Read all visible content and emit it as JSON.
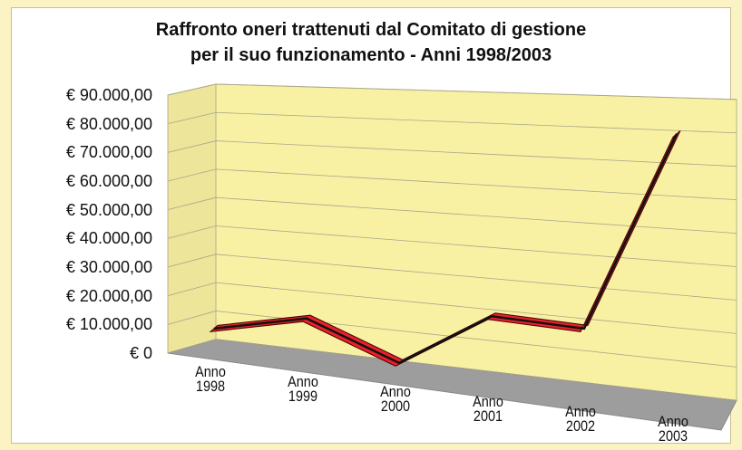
{
  "chart_data": {
    "type": "line",
    "title": [
      "Raffronto oneri trattenuti dal Comitato di gestione",
      "per il suo funzionamento - Anni 1998/2003"
    ],
    "categories": [
      "Anno 1998",
      "Anno 1999",
      "Anno 2000",
      "Anno 2001",
      "Anno 2002",
      "Anno 2003"
    ],
    "series": [
      {
        "name": null,
        "color": "#e8202a",
        "values": [
          5000,
          12000,
          500,
          19000,
          18000,
          80000
        ]
      }
    ],
    "ylim": [
      0,
      90000
    ],
    "yticks": [
      {
        "value": 0,
        "label": "€ 0"
      },
      {
        "value": 10000,
        "label": "€ 10.000,00"
      },
      {
        "value": 20000,
        "label": "€ 20.000,00"
      },
      {
        "value": 30000,
        "label": "€ 30.000,00"
      },
      {
        "value": 40000,
        "label": "€ 40.000,00"
      },
      {
        "value": 50000,
        "label": "€ 50.000,00"
      },
      {
        "value": 60000,
        "label": "€ 60.000,00"
      },
      {
        "value": 70000,
        "label": "€ 70.000,00"
      },
      {
        "value": 80000,
        "label": "€ 80.000,00"
      },
      {
        "value": 90000,
        "label": "€ 90.000,00"
      }
    ],
    "grid": true
  }
}
